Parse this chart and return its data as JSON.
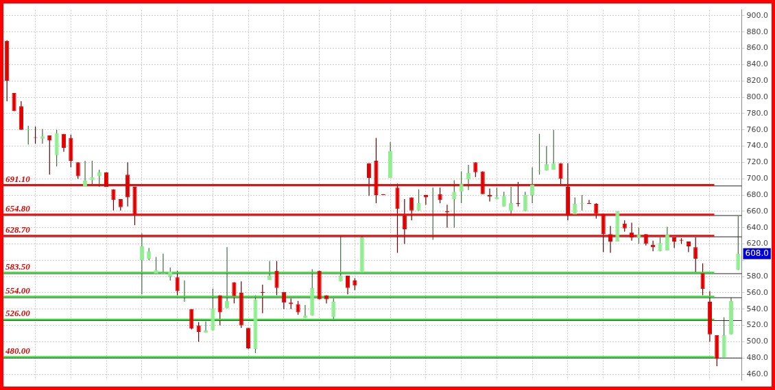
{
  "chart_data": {
    "type": "candlestick",
    "categories": [
      null,
      null,
      null,
      null,
      null,
      null,
      null,
      null,
      null,
      null,
      null,
      null,
      null,
      null,
      null,
      null,
      null,
      null,
      null,
      null,
      null,
      null,
      null,
      null,
      null,
      null,
      null,
      null,
      null,
      null,
      null,
      null,
      null,
      null,
      null,
      null,
      null,
      null,
      null,
      null,
      null,
      null,
      null,
      null,
      null,
      null,
      null,
      null,
      null,
      null,
      null,
      null,
      null,
      null,
      null,
      null,
      null,
      null,
      null,
      null,
      null,
      null,
      null,
      null,
      null,
      null,
      null,
      null,
      null,
      null,
      null,
      null,
      null,
      null,
      null,
      null,
      null,
      null,
      null,
      null,
      null,
      null,
      null,
      null,
      null,
      null,
      null,
      null,
      null,
      null,
      null,
      null,
      null,
      null,
      null,
      null,
      null,
      null,
      null,
      null,
      null,
      null,
      null,
      null
    ],
    "ohlc": [
      [
        869,
        870,
        795,
        820
      ],
      [
        805,
        805,
        783,
        783
      ],
      [
        789,
        795,
        760,
        760
      ],
      [
        760,
        765,
        742,
        761
      ],
      [
        751,
        764,
        743,
        750
      ],
      [
        749,
        761,
        743,
        752
      ],
      [
        753,
        753,
        705,
        747
      ],
      [
        729,
        760,
        715,
        756
      ],
      [
        755,
        755,
        733,
        738
      ],
      [
        750,
        754,
        714,
        722
      ],
      [
        720,
        720,
        700,
        703
      ],
      [
        690,
        722,
        690,
        698
      ],
      [
        698,
        722,
        692,
        702
      ],
      [
        703,
        711,
        690,
        708
      ],
      [
        708,
        708,
        690,
        690
      ],
      [
        687,
        687,
        661,
        674
      ],
      [
        675,
        675,
        661,
        665
      ],
      [
        705,
        720,
        666,
        677
      ],
      [
        690,
        690,
        643,
        656
      ],
      [
        600,
        633,
        558,
        617
      ],
      [
        602,
        615,
        600,
        611
      ],
      [
        583,
        604,
        583,
        588
      ],
      [
        583,
        608,
        583,
        584
      ],
      [
        580,
        591,
        575,
        586
      ],
      [
        579,
        587,
        557,
        562
      ],
      [
        550,
        575,
        549,
        551
      ],
      [
        540,
        540,
        515,
        516
      ],
      [
        520,
        524,
        500,
        512
      ],
      [
        511,
        525,
        511,
        514
      ],
      [
        514,
        565,
        514,
        541
      ],
      [
        557,
        557,
        520,
        536
      ],
      [
        541,
        616,
        541,
        550
      ],
      [
        573,
        573,
        547,
        556
      ],
      [
        560,
        574,
        517,
        520
      ],
      [
        517,
        517,
        491,
        492
      ],
      [
        491,
        557,
        486,
        552
      ],
      [
        561,
        570,
        535,
        560
      ],
      [
        576,
        599,
        576,
        581
      ],
      [
        587,
        599,
        557,
        566
      ],
      [
        561,
        561,
        540,
        548
      ],
      [
        548,
        553,
        540,
        546
      ],
      [
        546,
        550,
        533,
        536
      ],
      [
        529,
        545,
        529,
        532
      ],
      [
        532,
        589,
        532,
        566
      ],
      [
        587,
        587,
        552,
        552
      ],
      [
        557,
        557,
        547,
        552
      ],
      [
        530,
        553,
        527,
        549
      ],
      [
        574,
        630,
        574,
        581
      ],
      [
        581,
        581,
        558,
        566
      ],
      [
        575,
        578,
        563,
        569
      ],
      [
        585,
        630,
        585,
        628
      ],
      [
        719,
        719,
        679,
        701
      ],
      [
        722,
        750,
        670,
        680
      ],
      [
        681,
        681,
        680,
        680
      ],
      [
        701,
        745,
        701,
        734
      ],
      [
        689,
        694,
        609,
        663
      ],
      [
        655,
        675,
        620,
        638
      ],
      [
        677,
        677,
        649,
        661
      ],
      [
        661,
        687,
        661,
        670
      ],
      [
        680,
        680,
        668,
        677
      ],
      [
        682,
        689,
        625,
        683
      ],
      [
        681,
        689,
        670,
        674
      ],
      [
        660,
        668,
        640,
        659
      ],
      [
        675,
        698,
        640,
        684
      ],
      [
        684,
        709,
        670,
        694
      ],
      [
        699,
        717,
        686,
        707
      ],
      [
        720,
        720,
        702,
        708
      ],
      [
        709,
        709,
        681,
        681
      ],
      [
        680,
        688,
        672,
        678
      ],
      [
        675,
        689,
        675,
        678
      ],
      [
        666,
        684,
        666,
        679
      ],
      [
        661,
        690,
        655,
        670
      ],
      [
        670,
        696,
        666,
        669
      ],
      [
        660,
        684,
        660,
        680
      ],
      [
        680,
        714,
        670,
        693
      ],
      [
        709,
        755,
        705,
        710
      ],
      [
        710,
        740,
        710,
        718
      ],
      [
        711,
        760,
        711,
        719
      ],
      [
        719,
        719,
        692,
        700
      ],
      [
        690,
        719,
        649,
        655
      ],
      [
        656,
        677,
        656,
        669
      ],
      [
        669,
        680,
        661,
        670
      ],
      [
        670,
        674,
        669,
        669
      ],
      [
        669,
        670,
        651,
        657
      ],
      [
        657,
        657,
        610,
        632
      ],
      [
        632,
        642,
        609,
        623
      ],
      [
        623,
        660,
        623,
        660
      ],
      [
        645,
        649,
        635,
        639
      ],
      [
        634,
        646,
        624,
        628
      ],
      [
        627,
        640,
        620,
        632
      ],
      [
        632,
        632,
        618,
        620
      ],
      [
        619,
        624,
        611,
        616
      ],
      [
        611,
        628,
        611,
        621
      ],
      [
        612,
        641,
        612,
        632
      ],
      [
        628,
        628,
        615,
        623
      ],
      [
        625,
        627,
        620,
        624
      ],
      [
        623,
        623,
        610,
        617
      ],
      [
        616,
        628,
        585,
        602
      ],
      [
        584,
        596,
        557,
        565
      ],
      [
        549,
        562,
        500,
        509
      ],
      [
        508,
        508,
        470,
        479
      ],
      [
        480,
        530,
        480,
        508
      ],
      [
        509,
        554,
        509,
        550
      ],
      [
        588,
        654,
        588,
        608
      ]
    ],
    "colors": [
      "#e00000",
      "#e00000",
      "#e00000",
      "#90ee90",
      "#e00000",
      "#90ee90",
      "#e00000",
      "#90ee90",
      "#e00000",
      "#e00000",
      "#e00000",
      "#90ee90",
      "#90ee90",
      "#90ee90",
      "#e00000",
      "#e00000",
      "#e00000",
      "#e00000",
      "#e00000",
      "#90ee90",
      "#90ee90",
      "#90ee90",
      "#90ee90",
      "#90ee90",
      "#e00000",
      "#90ee90",
      "#e00000",
      "#e00000",
      "#90ee90",
      "#90ee90",
      "#e00000",
      "#90ee90",
      "#e00000",
      "#e00000",
      "#e00000",
      "#90ee90",
      "#e00000",
      "#90ee90",
      "#e00000",
      "#e00000",
      "#e00000",
      "#e00000",
      "#90ee90",
      "#90ee90",
      "#e00000",
      "#e00000",
      "#90ee90",
      "#90ee90",
      "#e00000",
      "#e00000",
      "#90ee90",
      "#e00000",
      "#e00000",
      "#e00000",
      "#90ee90",
      "#e00000",
      "#e00000",
      "#e00000",
      "#90ee90",
      "#e00000",
      "#90ee90",
      "#e00000",
      "#e00000",
      "#90ee90",
      "#90ee90",
      "#90ee90",
      "#e00000",
      "#e00000",
      "#e00000",
      "#90ee90",
      "#90ee90",
      "#90ee90",
      "#e00000",
      "#90ee90",
      "#90ee90",
      "#90ee90",
      "#90ee90",
      "#90ee90",
      "#e00000",
      "#e00000",
      "#90ee90",
      "#90ee90",
      "#e00000",
      "#e00000",
      "#e00000",
      "#e00000",
      "#90ee90",
      "#e00000",
      "#e00000",
      "#90ee90",
      "#e00000",
      "#e00000",
      "#90ee90",
      "#90ee90",
      "#e00000",
      "#e00000",
      "#e00000",
      "#e00000",
      "#e00000",
      "#e00000",
      "#e00000",
      "#90ee90",
      "#90ee90",
      "#90ee90"
    ],
    "ylim": [
      453,
      907
    ],
    "yticks": [
      {
        "value": 460,
        "label": "460.0"
      },
      {
        "value": 480,
        "label": "480.0"
      },
      {
        "value": 500,
        "label": "500.0"
      },
      {
        "value": 520,
        "label": "520.0"
      },
      {
        "value": 540,
        "label": "540.0"
      },
      {
        "value": 560,
        "label": "560.0"
      },
      {
        "value": 580,
        "label": "580.0"
      },
      {
        "value": 600,
        "label": null
      },
      {
        "value": 620,
        "label": "620.0"
      },
      {
        "value": 640,
        "label": "640.0"
      },
      {
        "value": 660,
        "label": "660.0"
      },
      {
        "value": 680,
        "label": "680.0"
      },
      {
        "value": 700,
        "label": "700.0"
      },
      {
        "value": 720,
        "label": "720.0"
      },
      {
        "value": 740,
        "label": "740.0"
      },
      {
        "value": 760,
        "label": "760.0"
      },
      {
        "value": 780,
        "label": "780.0"
      },
      {
        "value": 800,
        "label": "800.0"
      },
      {
        "value": 820,
        "label": "820.0"
      },
      {
        "value": 840,
        "label": "840.0"
      },
      {
        "value": 860,
        "label": "860.0"
      },
      {
        "value": 880,
        "label": "880.0"
      },
      {
        "value": 900,
        "label": "900.0"
      }
    ],
    "ref_lines": [
      {
        "axis": "y",
        "value": 691.1,
        "label": "691.10",
        "color": "#ff0000"
      },
      {
        "axis": "y",
        "value": 654.8,
        "label": "654.80",
        "color": "#ff0000"
      },
      {
        "axis": "y",
        "value": 628.7,
        "label": "628.70",
        "color": "#ff0000"
      },
      {
        "axis": "y",
        "value": 583.5,
        "label": "583.50",
        "color": "#33dd33"
      },
      {
        "axis": "y",
        "value": 554,
        "label": "554.00",
        "color": "#33dd33"
      },
      {
        "axis": "y",
        "value": 526,
        "label": "526.00",
        "color": "#33dd33"
      },
      {
        "axis": "y",
        "value": 480,
        "label": "480.00",
        "color": "#33dd33"
      }
    ],
    "annotations": [
      {
        "text": "608.0",
        "y": 608
      }
    ],
    "grid": true,
    "legend": false,
    "tick_labels": "y"
  }
}
